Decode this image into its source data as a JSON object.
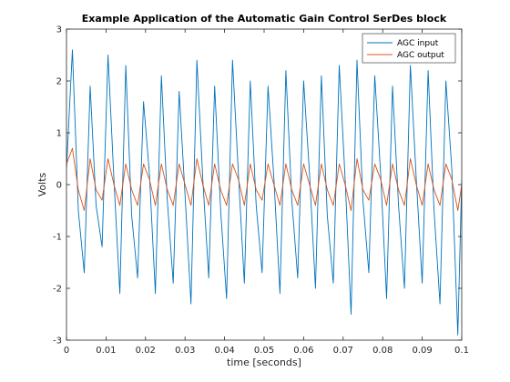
{
  "chart_data": {
    "type": "line",
    "title": "Example Application of the Automatic Gain Control SerDes block",
    "xlabel": "time [seconds]",
    "ylabel": "Volts",
    "xlim": [
      0,
      0.1
    ],
    "ylim": [
      -3,
      3
    ],
    "xticks": [
      "0",
      "0.01",
      "0.02",
      "0.03",
      "0.04",
      "0.05",
      "0.06",
      "0.07",
      "0.08",
      "0.09",
      "0.1"
    ],
    "yticks": [
      "-3",
      "-2",
      "-1",
      "0",
      "1",
      "2",
      "3"
    ],
    "grid": false,
    "legend_position": "top-right",
    "series": [
      {
        "name": "AGC input",
        "color": "#0072BD",
        "x": [
          0,
          0.0015,
          0.003,
          0.0045,
          0.006,
          0.0075,
          0.009,
          0.0105,
          0.012,
          0.0135,
          0.015,
          0.0165,
          0.018,
          0.0195,
          0.021,
          0.0225,
          0.024,
          0.0255,
          0.027,
          0.0285,
          0.03,
          0.0315,
          0.033,
          0.0345,
          0.036,
          0.0375,
          0.039,
          0.0405,
          0.042,
          0.0435,
          0.045,
          0.0465,
          0.048,
          0.0495,
          0.051,
          0.0525,
          0.054,
          0.0555,
          0.057,
          0.0585,
          0.06,
          0.0615,
          0.063,
          0.0645,
          0.066,
          0.0675,
          0.069,
          0.0705,
          0.072,
          0.0735,
          0.075,
          0.0765,
          0.078,
          0.0795,
          0.081,
          0.0825,
          0.084,
          0.0855,
          0.087,
          0.0885,
          0.09,
          0.0915,
          0.093,
          0.0945,
          0.096,
          0.0975,
          0.099,
          0.1
        ],
        "values": [
          0.3,
          2.6,
          -0.5,
          -1.7,
          1.9,
          -0.4,
          -1.2,
          2.5,
          0.1,
          -2.1,
          2.3,
          -0.6,
          -1.8,
          1.6,
          0.2,
          -2.1,
          2.1,
          -0.3,
          -1.9,
          1.8,
          -0.2,
          -2.3,
          2.4,
          0.1,
          -1.8,
          1.9,
          -0.5,
          -2.2,
          2.4,
          0.2,
          -1.9,
          2.0,
          -0.4,
          -1.7,
          1.9,
          0.1,
          -2.1,
          2.2,
          -0.3,
          -1.8,
          2.0,
          0.2,
          -2.0,
          2.1,
          -0.6,
          -1.9,
          2.3,
          0.1,
          -2.5,
          2.4,
          -0.3,
          -1.7,
          2.1,
          0.2,
          -2.2,
          1.9,
          -0.4,
          -2.0,
          2.3,
          0.1,
          -1.9,
          2.2,
          -0.5,
          -2.3,
          2.0,
          0.3,
          -2.9,
          0.1
        ]
      },
      {
        "name": "AGC output",
        "color": "#D95319",
        "x": [
          0,
          0.0015,
          0.003,
          0.0045,
          0.006,
          0.0075,
          0.009,
          0.0105,
          0.012,
          0.0135,
          0.015,
          0.0165,
          0.018,
          0.0195,
          0.021,
          0.0225,
          0.024,
          0.0255,
          0.027,
          0.0285,
          0.03,
          0.0315,
          0.033,
          0.0345,
          0.036,
          0.0375,
          0.039,
          0.0405,
          0.042,
          0.0435,
          0.045,
          0.0465,
          0.048,
          0.0495,
          0.051,
          0.0525,
          0.054,
          0.0555,
          0.057,
          0.0585,
          0.06,
          0.0615,
          0.063,
          0.0645,
          0.066,
          0.0675,
          0.069,
          0.0705,
          0.072,
          0.0735,
          0.075,
          0.0765,
          0.078,
          0.0795,
          0.081,
          0.0825,
          0.084,
          0.0855,
          0.087,
          0.0885,
          0.09,
          0.0915,
          0.093,
          0.0945,
          0.096,
          0.0975,
          0.099,
          0.1
        ],
        "values": [
          0.4,
          0.7,
          -0.1,
          -0.5,
          0.5,
          -0.1,
          -0.3,
          0.5,
          0.0,
          -0.4,
          0.4,
          -0.1,
          -0.4,
          0.4,
          0.1,
          -0.4,
          0.4,
          -0.1,
          -0.4,
          0.4,
          0.0,
          -0.4,
          0.5,
          0.0,
          -0.4,
          0.4,
          -0.1,
          -0.4,
          0.4,
          0.1,
          -0.4,
          0.4,
          -0.1,
          -0.3,
          0.4,
          0.0,
          -0.4,
          0.4,
          -0.1,
          -0.4,
          0.4,
          0.0,
          -0.4,
          0.4,
          -0.1,
          -0.4,
          0.4,
          0.0,
          -0.5,
          0.5,
          -0.1,
          -0.3,
          0.4,
          0.1,
          -0.4,
          0.4,
          -0.1,
          -0.4,
          0.5,
          0.0,
          -0.4,
          0.4,
          -0.1,
          -0.4,
          0.4,
          0.1,
          -0.5,
          0.0
        ]
      }
    ]
  }
}
